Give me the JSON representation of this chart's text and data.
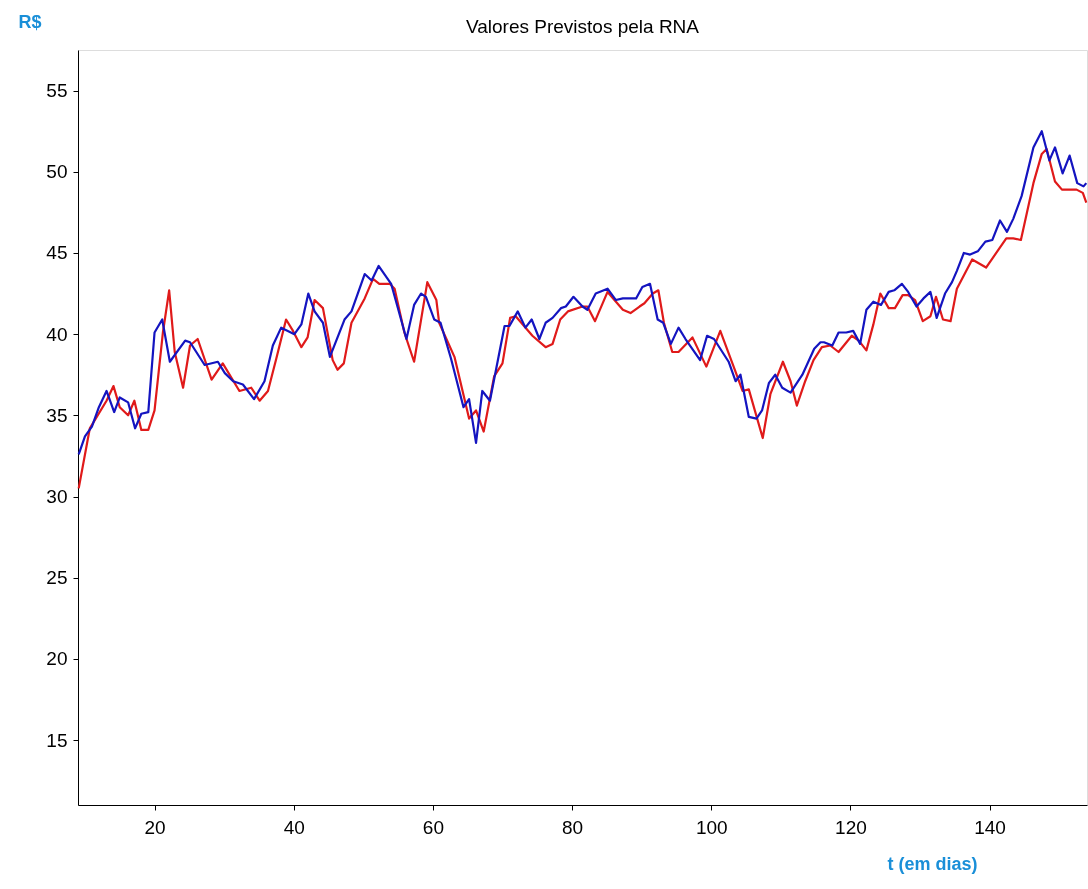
{
  "chart_data": {
    "type": "line",
    "title": "Valores Previstos pela RNA",
    "xlabel": "t (em dias)",
    "ylabel": "R$",
    "xlim": [
      9,
      154
    ],
    "ylim": [
      11,
      57.5
    ],
    "xticks": [
      20,
      40,
      60,
      80,
      100,
      120,
      140
    ],
    "yticks": [
      15,
      20,
      25,
      30,
      35,
      40,
      45,
      50,
      55
    ],
    "series": [
      {
        "color": "#e01a1a",
        "x": [
          9.1,
          10.7,
          13.1,
          14.1,
          15,
          16.2,
          17.1,
          18.1,
          19.1,
          20,
          21.2,
          22.1,
          22.9,
          24.1,
          25.1,
          26.2,
          28.2,
          29.8,
          32.2,
          33.9,
          35.1,
          36.3,
          37.5,
          38.9,
          39.9,
          41.1,
          42,
          43,
          44.2,
          45.6,
          46.3,
          47.2,
          48.3,
          50.2,
          51.4,
          52.3,
          53.8,
          54.5,
          55.9,
          57.3,
          59.2,
          60.5,
          60.9,
          63.1,
          65.2,
          66.2,
          67.3,
          68.8,
          70,
          71.1,
          71.9,
          74.3,
          76.2,
          77.2,
          78.3,
          79.4,
          81.5,
          82.2,
          83.3,
          85.1,
          87.3,
          88.4,
          89.7,
          90.4,
          91.6,
          92.4,
          93.2,
          94.4,
          95.3,
          97.3,
          99.3,
          101.3,
          103.3,
          104.5,
          105.4,
          107.4,
          108.5,
          110.3,
          111.4,
          112.3,
          113.5,
          114.7,
          115.9,
          117.1,
          118.3,
          120.2,
          121.2,
          122.3,
          123.3,
          124.3,
          125.5,
          126.4,
          127.5,
          128.3,
          129.3,
          130.4,
          131.5,
          132.3,
          133.3,
          134.4,
          135.3,
          137.5,
          139.5,
          142.4,
          143.4,
          144.5,
          146.3,
          147.5,
          148.2,
          149.4,
          150.4,
          152.5,
          153.4,
          153.9
        ],
        "values": [
          30.5,
          34.2,
          35.9,
          36.8,
          35.5,
          35,
          35.9,
          34.1,
          34.1,
          35.3,
          40.1,
          42.7,
          38.9,
          36.7,
          39.3,
          39.7,
          37.2,
          38.2,
          36.5,
          36.7,
          35.9,
          36.5,
          38.5,
          40.9,
          40.2,
          39.2,
          39.8,
          42.1,
          41.6,
          38.4,
          37.8,
          38.2,
          40.7,
          42.2,
          43.4,
          43.1,
          43.1,
          42.8,
          40.1,
          38.3,
          43.2,
          42.1,
          40.7,
          38.6,
          34.8,
          35.3,
          34,
          37.4,
          38.2,
          41,
          41.1,
          39.9,
          39.2,
          39.4,
          40.9,
          41.4,
          41.7,
          41.7,
          40.8,
          42.6,
          41.5,
          41.3,
          41.7,
          41.9,
          42.5,
          42.7,
          40.7,
          38.9,
          38.9,
          39.8,
          38,
          40.2,
          37.9,
          36.5,
          36.6,
          33.6,
          36.3,
          38.3,
          37.1,
          35.6,
          37.1,
          38.4,
          39.2,
          39.3,
          38.9,
          39.9,
          39.6,
          39,
          40.6,
          42.5,
          41.6,
          41.6,
          42.4,
          42.4,
          42.1,
          40.8,
          41.1,
          42.3,
          40.9,
          40.8,
          42.8,
          44.6,
          44.1,
          45.9,
          45.9,
          45.8,
          49.3,
          51.1,
          51.4,
          49.4,
          48.9,
          48.9,
          48.7,
          48.1
        ]
      },
      {
        "color": "#1414c0",
        "x": [
          9.1,
          10,
          11,
          12,
          13.1,
          14.2,
          15,
          16.2,
          17.2,
          18.1,
          19.1,
          20,
          21.1,
          22.2,
          24.4,
          25.1,
          27.2,
          29.1,
          30.1,
          31.3,
          32.7,
          34.3,
          35.8,
          37,
          38.2,
          40.1,
          41.1,
          42.1,
          43,
          44.2,
          45.2,
          47.3,
          48.3,
          50.2,
          51.2,
          52.2,
          54,
          56.2,
          57.3,
          58.3,
          59,
          60.2,
          61.1,
          62.6,
          64.4,
          65.2,
          66.2,
          67.1,
          68.2,
          70.3,
          71,
          72.2,
          73.3,
          74.2,
          75.3,
          76.2,
          77.2,
          78.4,
          79.1,
          80.2,
          81.5,
          82.2,
          83.4,
          85.1,
          86.3,
          87.3,
          89.2,
          90.1,
          91.2,
          92.3,
          93.1,
          94.2,
          95.3,
          96.3,
          98.4,
          99.4,
          100.4,
          102.5,
          103.5,
          104.2,
          105.4,
          106.5,
          107.3,
          108.3,
          109.2,
          110.2,
          111.4,
          113.1,
          114.8,
          115.7,
          116.2,
          117.4,
          118.3,
          119.4,
          120.4,
          121.4,
          122.3,
          123.3,
          124.4,
          125.5,
          126.3,
          127.4,
          128.3,
          129.5,
          130.5,
          131.5,
          132.4,
          133.6,
          134.6,
          135.3,
          136.3,
          137.2,
          138.3,
          139.4,
          140.4,
          141.5,
          142.5,
          143.4,
          144.6,
          146.3,
          147.5,
          148.6,
          149.4,
          150.5,
          151.5,
          152.6,
          153.5,
          153.9
        ],
        "values": [
          32.6,
          33.7,
          34.3,
          35.5,
          36.5,
          35.2,
          36.1,
          35.8,
          34.2,
          35.1,
          35.2,
          40.1,
          40.9,
          38.3,
          39.6,
          39.5,
          38.1,
          38.3,
          37.6,
          37.1,
          36.9,
          36,
          37.1,
          39.3,
          40.4,
          40,
          40.6,
          42.5,
          41.4,
          40.7,
          38.6,
          40.9,
          41.4,
          43.7,
          43.3,
          44.2,
          43.1,
          39.7,
          41.8,
          42.5,
          42.3,
          40.9,
          40.7,
          38.5,
          35.5,
          36,
          33.3,
          36.5,
          35.9,
          40.5,
          40.5,
          41.4,
          40.4,
          40.9,
          39.7,
          40.7,
          41,
          41.6,
          41.7,
          42.3,
          41.7,
          41.5,
          42.5,
          42.8,
          42.1,
          42.2,
          42.2,
          42.9,
          43.1,
          40.9,
          40.7,
          39.4,
          40.4,
          39.7,
          38.4,
          39.9,
          39.7,
          38.3,
          37.1,
          37.5,
          34.9,
          34.8,
          35.3,
          37,
          37.5,
          36.7,
          36.4,
          37.5,
          39.1,
          39.5,
          39.5,
          39.3,
          40.1,
          40.1,
          40.2,
          39.4,
          41.5,
          42,
          41.8,
          42.6,
          42.7,
          43.1,
          42.6,
          41.7,
          42.2,
          42.6,
          41,
          42.5,
          43.2,
          43.9,
          45,
          44.9,
          45.1,
          45.7,
          45.8,
          47,
          46.3,
          47.1,
          48.5,
          51.5,
          52.5,
          50.7,
          51.5,
          49.9,
          51,
          49.3,
          49.1,
          49.3
        ]
      }
    ]
  }
}
